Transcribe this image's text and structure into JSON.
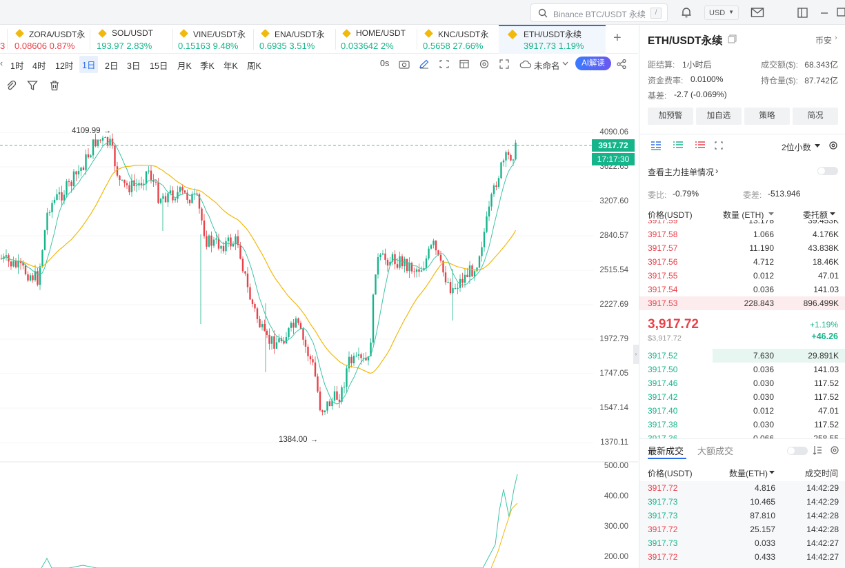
{
  "topbar": {
    "search_placeholder": "Binance BTC/USDT 永续",
    "search_shortcut": "/",
    "currency": "USD"
  },
  "tickers": [
    {
      "name": "ZORA/USDT永",
      "price": "0.08606",
      "change": "0.87%",
      "dir": "dn"
    },
    {
      "name": "SOL/USDT",
      "price": "193.97",
      "change": "2.83%",
      "dir": "up"
    },
    {
      "name": "VINE/USDT永",
      "price": "0.15163",
      "change": "9.48%",
      "dir": "up"
    },
    {
      "name": "ENA/USDT永",
      "price": "0.6935",
      "change": "3.51%",
      "dir": "up"
    },
    {
      "name": "HOME/USDT",
      "price": "0.033642",
      "change": "2%",
      "dir": "up"
    },
    {
      "name": "KNC/USDT永",
      "price": "0.5658",
      "change": "27.66%",
      "dir": "up"
    },
    {
      "name": "ETH/USDT永续",
      "price": "3917.73",
      "change": "1.19%",
      "dir": "up",
      "active": true
    }
  ],
  "ticker_cut_left": "3",
  "intervals": [
    "1时",
    "4时",
    "12时",
    "1日",
    "2日",
    "3日",
    "15日",
    "月K",
    "季K",
    "年K",
    "周K"
  ],
  "interval_selected": "1日",
  "toolbar": {
    "timer": "0s",
    "layout_name": "未命名",
    "ai_label": "AI解读"
  },
  "chart": {
    "price_ticks": [
      "4090.06",
      "3622.65",
      "3207.60",
      "2840.57",
      "2515.54",
      "2227.69",
      "1972.79",
      "1747.05",
      "1547.14",
      "1370.11"
    ],
    "volume_ticks": [
      "500.00",
      "400.00",
      "300.00",
      "200.00"
    ],
    "high_label": "4109.99",
    "low_label": "1384.00",
    "current_price": "3917.72",
    "countdown": "17:17:30",
    "colors": {
      "up": "#16b48b",
      "down": "#e8414a",
      "ma": "#f0b90b",
      "ma2": "#3fc3a5"
    }
  },
  "panel": {
    "symbol": "ETH/USDT永续",
    "exchange": "币安",
    "settle_label": "距结算:",
    "settle_value": "1小时后",
    "volume_label": "成交额($):",
    "volume_value": "68.343亿",
    "funding_label": "资金费率:",
    "funding_value": "0.0100%",
    "oi_label": "持仓量($):",
    "oi_value": "87.742亿",
    "basis_label": "基差:",
    "basis_value": "-2.7 (-0.069%)",
    "buttons": [
      "加预警",
      "加自选",
      "策略",
      "简况"
    ],
    "decimals": "2位小数",
    "main_orders_label": "查看主力挂单情况",
    "ratio_label": "委比:",
    "ratio_value": "-0.79%",
    "diff_label": "委差:",
    "diff_value": "-513.946",
    "ob_headers": [
      "价格(USDT)",
      "数量 (ETH)",
      "委托额"
    ],
    "asks": [
      {
        "price": "3917.58",
        "qty": "1.066",
        "amt": "4.176K"
      },
      {
        "price": "3917.57",
        "qty": "11.190",
        "amt": "43.838K"
      },
      {
        "price": "3917.56",
        "qty": "4.712",
        "amt": "18.46K"
      },
      {
        "price": "3917.55",
        "qty": "0.012",
        "amt": "47.01"
      },
      {
        "price": "3917.54",
        "qty": "0.036",
        "amt": "141.03"
      },
      {
        "price": "3917.53",
        "qty": "228.843",
        "amt": "896.499K"
      }
    ],
    "last_price": "3,917.72",
    "last_price_usd": "$3,917.72",
    "last_change_pct": "+1.19%",
    "last_change": "+46.26",
    "bids": [
      {
        "price": "3917.52",
        "qty": "7.630",
        "amt": "29.891K"
      },
      {
        "price": "3917.50",
        "qty": "0.036",
        "amt": "141.03"
      },
      {
        "price": "3917.46",
        "qty": "0.030",
        "amt": "117.52"
      },
      {
        "price": "3917.42",
        "qty": "0.030",
        "amt": "117.52"
      },
      {
        "price": "3917.40",
        "qty": "0.012",
        "amt": "47.01"
      },
      {
        "price": "3917.38",
        "qty": "0.030",
        "amt": "117.52"
      }
    ],
    "trade_tabs": [
      "最新成交",
      "大额成交"
    ],
    "trade_headers": [
      "价格(USDT)",
      "数量(ETH)",
      "成交时间"
    ],
    "trades": [
      {
        "price": "3917.72",
        "qty": "4.816",
        "time": "14:42:29",
        "dir": "dn"
      },
      {
        "price": "3917.73",
        "qty": "10.465",
        "time": "14:42:29",
        "dir": "up"
      },
      {
        "price": "3917.73",
        "qty": "87.810",
        "time": "14:42:28",
        "dir": "up"
      },
      {
        "price": "3917.72",
        "qty": "25.157",
        "time": "14:42:28",
        "dir": "dn"
      },
      {
        "price": "3917.73",
        "qty": "0.033",
        "time": "14:42:27",
        "dir": "up"
      },
      {
        "price": "3917.72",
        "qty": "0.433",
        "time": "14:42:27",
        "dir": "dn"
      }
    ]
  }
}
